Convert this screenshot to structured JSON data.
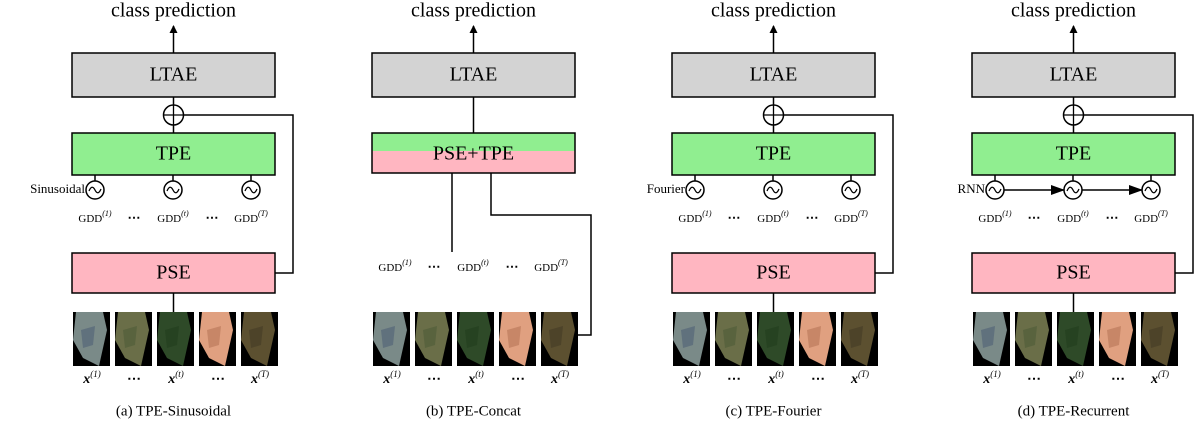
{
  "panels": [
    {
      "kind": "encoder",
      "title": "class prediction",
      "ltae": "LTAE",
      "tpe": "TPE",
      "pse": "PSE",
      "encoder": "Sinusoidal",
      "gdd": [
        {
          "text": "GDD",
          "sup": "(1)"
        },
        "⋯",
        {
          "text": "GDD",
          "sup": "(t)"
        },
        "⋯",
        {
          "text": "GDD",
          "sup": "(T)"
        }
      ],
      "frames": [
        {
          "text": "x",
          "sup": "(1)"
        },
        "⋯",
        {
          "text": "x",
          "sup": "(t)"
        },
        "⋯",
        {
          "text": "x",
          "sup": "(T)"
        }
      ],
      "caption": "(a) TPE-Sinusoidal"
    },
    {
      "kind": "concat",
      "title": "class prediction",
      "ltae": "LTAE",
      "fused": "PSE+TPE",
      "gdd": [
        {
          "text": "GDD",
          "sup": "(1)"
        },
        "⋯",
        {
          "text": "GDD",
          "sup": "(t)"
        },
        "⋯",
        {
          "text": "GDD",
          "sup": "(T)"
        }
      ],
      "frames": [
        {
          "text": "x",
          "sup": "(1)"
        },
        "⋯",
        {
          "text": "x",
          "sup": "(t)"
        },
        "⋯",
        {
          "text": "x",
          "sup": "(T)"
        }
      ],
      "caption": "(b) TPE-Concat"
    },
    {
      "kind": "encoder",
      "title": "class prediction",
      "ltae": "LTAE",
      "tpe": "TPE",
      "pse": "PSE",
      "encoder": "Fourier",
      "gdd": [
        {
          "text": "GDD",
          "sup": "(1)"
        },
        "⋯",
        {
          "text": "GDD",
          "sup": "(t)"
        },
        "⋯",
        {
          "text": "GDD",
          "sup": "(T)"
        }
      ],
      "frames": [
        {
          "text": "x",
          "sup": "(1)"
        },
        "⋯",
        {
          "text": "x",
          "sup": "(t)"
        },
        "⋯",
        {
          "text": "x",
          "sup": "(T)"
        }
      ],
      "caption": "(c) TPE-Fourier"
    },
    {
      "kind": "recurrent",
      "title": "class prediction",
      "ltae": "LTAE",
      "tpe": "TPE",
      "pse": "PSE",
      "encoder": "RNN",
      "gdd": [
        {
          "text": "GDD",
          "sup": "(1)"
        },
        "⋯",
        {
          "text": "GDD",
          "sup": "(t)"
        },
        "⋯",
        {
          "text": "GDD",
          "sup": "(T)"
        }
      ],
      "frames": [
        {
          "text": "x",
          "sup": "(1)"
        },
        "⋯",
        {
          "text": "x",
          "sup": "(t)"
        },
        "⋯",
        {
          "text": "x",
          "sup": "(T)"
        }
      ],
      "caption": "(d) TPE-Recurrent"
    }
  ]
}
